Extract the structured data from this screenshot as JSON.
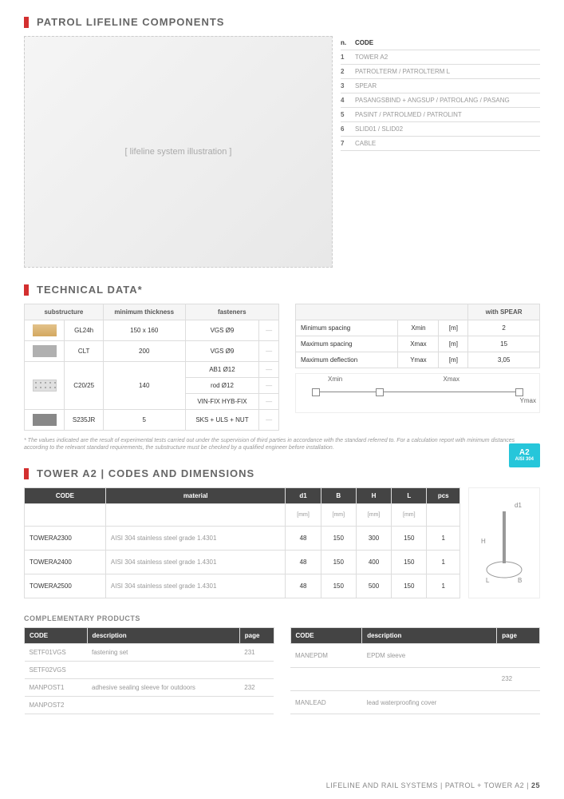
{
  "titles": {
    "components": "PATROL LIFELINE COMPONENTS",
    "technical": "TECHNICAL DATA*",
    "tower": "TOWER A2 | CODES AND DIMENSIONS",
    "complementary": "COMPLEMENTARY PRODUCTS"
  },
  "components_legend": {
    "header": {
      "num": "n.",
      "label": "CODE"
    },
    "rows": [
      {
        "num": "1",
        "label": "TOWER A2"
      },
      {
        "num": "2",
        "label": "PATROLTERM / PATROLTERM L"
      },
      {
        "num": "3",
        "label": "SPEAR"
      },
      {
        "num": "4",
        "label": "PASANGSBIND + ANGSUP / PATROLANG / PASANG"
      },
      {
        "num": "5",
        "label": "PASINT / PATROLMED / PATROLINT"
      },
      {
        "num": "6",
        "label": "SLID01 / SLID02"
      },
      {
        "num": "7",
        "label": "CABLE"
      }
    ]
  },
  "technical_left": {
    "headers": [
      "substructure",
      "minimum thickness",
      "fasteners"
    ],
    "rows": [
      {
        "swatch": "wood",
        "name": "GL24h",
        "thk": "150 x 160",
        "fasteners": [
          "VGS Ø9"
        ]
      },
      {
        "swatch": "steel",
        "name": "CLT",
        "thk": "200",
        "fasteners": [
          "VGS Ø9"
        ]
      },
      {
        "swatch": "concrete",
        "name": "C20/25",
        "thk": "140",
        "fasteners": [
          "AB1 Ø12",
          "rod Ø12",
          "VIN-FIX HYB-FIX"
        ]
      },
      {
        "swatch": "ibeam",
        "name": "S235JR",
        "thk": "5",
        "fasteners": [
          "SKS + ULS + NUT"
        ]
      }
    ]
  },
  "technical_right": {
    "header_spear": "with SPEAR",
    "rows": [
      {
        "label": "Minimum spacing",
        "sym": "Xmin",
        "unit": "[m]",
        "val": "2"
      },
      {
        "label": "Maximum spacing",
        "sym": "Xmax",
        "unit": "[m]",
        "val": "15"
      },
      {
        "label": "Maximum deflection",
        "sym": "Ymax",
        "unit": "[m]",
        "val": "3,05"
      }
    ],
    "diagram_labels": {
      "xmin": "Xmin",
      "xmax": "Xmax",
      "ymax": "Ymax"
    }
  },
  "footnote": "* The values indicated are the result of experimental tests carried out under the supervision of third parties in accordance with the standard referred to. For a calculation report with minimum distances according to the relevant standard requirements, the substructure must be checked by a qualified engineer before installation.",
  "a2_badge": {
    "code": "A2",
    "sub": "AISI 304"
  },
  "tower_table": {
    "headers": [
      "CODE",
      "material",
      "d1",
      "B",
      "H",
      "L",
      "pcs"
    ],
    "units": [
      "",
      "",
      "[mm]",
      "[mm]",
      "[mm]",
      "[mm]",
      ""
    ],
    "rows": [
      {
        "code": "TOWERA2300",
        "mat": "AISI 304 stainless steel grade 1.4301",
        "d1": "48",
        "b": "150",
        "h": "300",
        "l": "150",
        "pcs": "1"
      },
      {
        "code": "TOWERA2400",
        "mat": "AISI 304 stainless steel grade 1.4301",
        "d1": "48",
        "b": "150",
        "h": "400",
        "l": "150",
        "pcs": "1"
      },
      {
        "code": "TOWERA2500",
        "mat": "AISI 304 stainless steel grade 1.4301",
        "d1": "48",
        "b": "150",
        "h": "500",
        "l": "150",
        "pcs": "1"
      }
    ],
    "diagram_labels": {
      "d1": "d1",
      "H": "H",
      "L": "L",
      "B": "B"
    }
  },
  "complementary": {
    "headers": [
      "CODE",
      "description",
      "page"
    ],
    "left_rows": [
      {
        "code": "SETF01VGS",
        "desc": "fastening set",
        "page": "231"
      },
      {
        "code": "SETF02VGS",
        "desc": "",
        "page": ""
      },
      {
        "code": "MANPOST1",
        "desc": "adhesive sealing sleeve for outdoors",
        "page": "232"
      },
      {
        "code": "MANPOST2",
        "desc": "",
        "page": ""
      }
    ],
    "right_rows": [
      {
        "code": "MANEPDM",
        "desc": "EPDM sleeve",
        "page": ""
      },
      {
        "code": "",
        "desc": "",
        "page": "232"
      },
      {
        "code": "MANLEAD",
        "desc": "lead waterproofing cover",
        "page": ""
      }
    ]
  },
  "footer": {
    "text": "LIFELINE AND RAIL SYSTEMS  |  PATROL + TOWER A2  |",
    "page": "25"
  }
}
